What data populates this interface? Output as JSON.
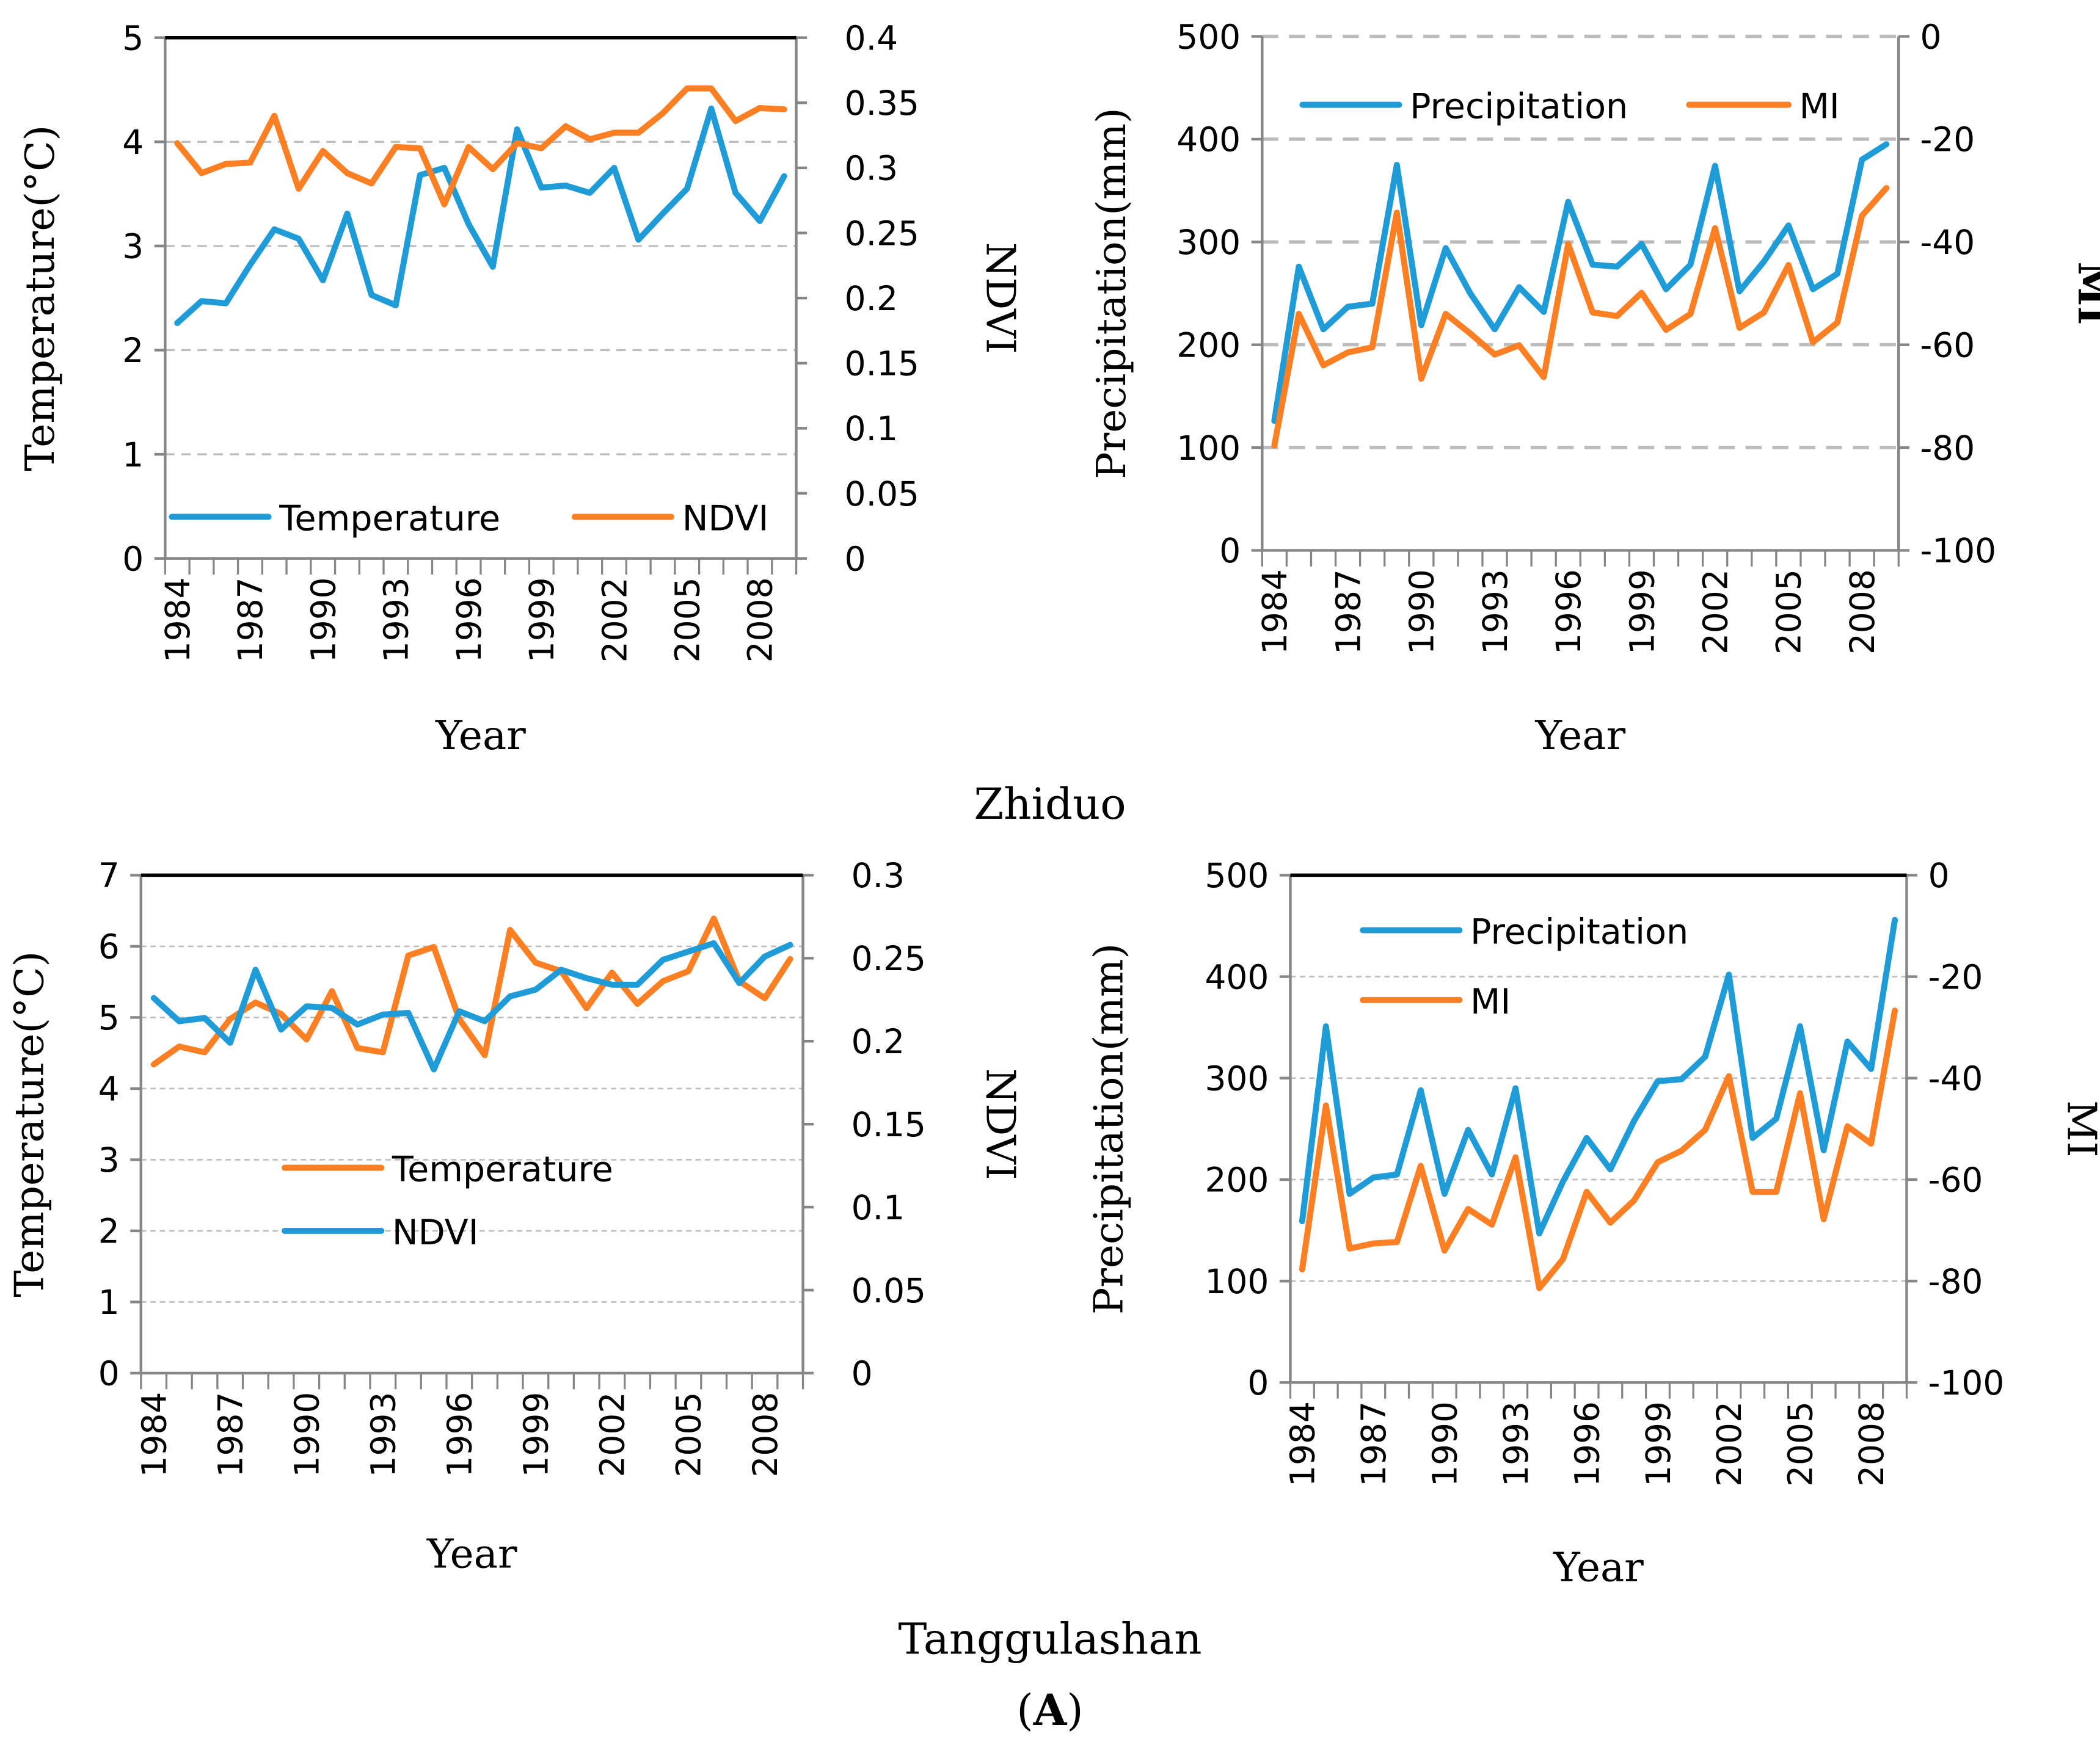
{
  "colors": {
    "blue": "#1f9bd7",
    "orange": "#fd7f23",
    "axis": "#868686",
    "grid": "#bdbdbd"
  },
  "captions": {
    "station1": "Zhiduo",
    "station2": "Tanggulashan",
    "panel_open": "(",
    "panel_letter": "A",
    "panel_close": ")"
  },
  "chart_data": [
    {
      "type": "line",
      "station": "Zhiduo",
      "xlabel": "Year",
      "x": [
        1984,
        1985,
        1986,
        1987,
        1988,
        1989,
        1990,
        1991,
        1992,
        1993,
        1994,
        1995,
        1996,
        1997,
        1998,
        1999,
        2000,
        2001,
        2002,
        2003,
        2004,
        2005,
        2006,
        2007,
        2008,
        2009
      ],
      "x_tick_labels": [
        "1984",
        "1987",
        "1990",
        "1993",
        "1996",
        "1999",
        "2002",
        "2005",
        "2008"
      ],
      "y_left": {
        "label": "Temperature(°C)",
        "range": [
          0,
          5
        ],
        "ticks": [
          0,
          1,
          2,
          3,
          4,
          5
        ]
      },
      "y_right": {
        "label": "NDVI",
        "range": [
          0,
          0.4
        ],
        "ticks": [
          0,
          0.05,
          0.1,
          0.15,
          0.2,
          0.25,
          0.3,
          0.35,
          0.4
        ]
      },
      "grid": true,
      "legend_position": "bottom",
      "series": [
        {
          "name": "Temperature",
          "axis": "left",
          "color": "#1f9bd7",
          "values": [
            2.26,
            2.47,
            2.45,
            2.82,
            3.16,
            3.07,
            2.67,
            3.31,
            2.53,
            2.43,
            3.68,
            3.75,
            3.21,
            2.8,
            4.12,
            3.56,
            3.58,
            3.51,
            3.75,
            3.06,
            3.31,
            3.55,
            4.32,
            3.51,
            3.24,
            3.67
          ]
        },
        {
          "name": "NDVI",
          "axis": "right",
          "color": "#fd7f23",
          "values": [
            0.319,
            0.296,
            0.303,
            0.304,
            0.34,
            0.284,
            0.313,
            0.296,
            0.288,
            0.316,
            0.315,
            0.272,
            0.316,
            0.299,
            0.319,
            0.315,
            0.332,
            0.322,
            0.327,
            0.327,
            0.342,
            0.361,
            0.361,
            0.336,
            0.346,
            0.345
          ]
        }
      ]
    },
    {
      "type": "line",
      "station": "Zhiduo",
      "xlabel": "Year",
      "x": [
        1984,
        1985,
        1986,
        1987,
        1988,
        1989,
        1990,
        1991,
        1992,
        1993,
        1994,
        1995,
        1996,
        1997,
        1998,
        1999,
        2000,
        2001,
        2002,
        2003,
        2004,
        2005,
        2006,
        2007,
        2008,
        2009
      ],
      "x_tick_labels": [
        "1984",
        "1987",
        "1990",
        "1993",
        "1996",
        "1999",
        "2002",
        "2005",
        "2008"
      ],
      "y_left": {
        "label": "Precipitation(mm)",
        "range": [
          0,
          500
        ],
        "ticks": [
          0,
          100,
          200,
          300,
          400,
          500
        ]
      },
      "y_right": {
        "label": "MI",
        "range": [
          -100,
          0
        ],
        "ticks": [
          -100,
          -80,
          -60,
          -40,
          -20,
          0
        ]
      },
      "grid": true,
      "legend_position": "top",
      "series": [
        {
          "name": "Precipitation",
          "axis": "left",
          "color": "#1f9bd7",
          "values": [
            126,
            276,
            215,
            237,
            240,
            375,
            219,
            294,
            250,
            215,
            256,
            232,
            339,
            278,
            276,
            298,
            254,
            278,
            374,
            252,
            281,
            316,
            254,
            269,
            380,
            395
          ]
        },
        {
          "name": "MI",
          "axis": "right",
          "color": "#fd7f23",
          "values": [
            -79.6,
            -54.0,
            -64.0,
            -61.5,
            -60.5,
            -34.3,
            -66.6,
            -54.0,
            -57.8,
            -61.9,
            -60.1,
            -66.3,
            -40.4,
            -53.7,
            -54.4,
            -49.9,
            -57.1,
            -54.0,
            -37.3,
            -56.7,
            -53.7,
            -44.5,
            -59.5,
            -55.7,
            -34.9,
            -29.5
          ]
        }
      ]
    },
    {
      "type": "line",
      "station": "Tanggulashan",
      "xlabel": "Year",
      "x": [
        1984,
        1985,
        1986,
        1987,
        1988,
        1989,
        1990,
        1991,
        1992,
        1993,
        1994,
        1995,
        1996,
        1997,
        1998,
        1999,
        2000,
        2001,
        2002,
        2003,
        2004,
        2005,
        2006,
        2007,
        2008,
        2009
      ],
      "x_tick_labels": [
        "1984",
        "1987",
        "1990",
        "1993",
        "1996",
        "1999",
        "2002",
        "2005",
        "2008"
      ],
      "y_left": {
        "label": "Temperature(°C)",
        "range": [
          0,
          7
        ],
        "ticks": [
          0,
          1,
          2,
          3,
          4,
          5,
          6,
          7
        ]
      },
      "y_right": {
        "label": "NDVI",
        "range": [
          0,
          0.3
        ],
        "ticks": [
          0,
          0.05,
          0.1,
          0.15,
          0.2,
          0.25,
          0.3
        ]
      },
      "grid": true,
      "legend_position": "middle-left",
      "series": [
        {
          "name": "Temperature",
          "axis": "left",
          "color": "#fd7f23",
          "values": [
            4.34,
            4.59,
            4.51,
            4.98,
            5.21,
            5.05,
            4.69,
            5.37,
            4.57,
            4.51,
            5.87,
            5.99,
            4.98,
            4.47,
            6.23,
            5.77,
            5.65,
            5.13,
            5.63,
            5.19,
            5.51,
            5.65,
            6.39,
            5.51,
            5.27,
            5.82
          ]
        },
        {
          "name": "NDVI",
          "axis": "right",
          "color": "#1f9bd7",
          "values": [
            0.226,
            0.212,
            0.214,
            0.199,
            0.243,
            0.207,
            0.221,
            0.22,
            0.21,
            0.216,
            0.217,
            0.183,
            0.218,
            0.212,
            0.227,
            0.231,
            0.243,
            0.238,
            0.234,
            0.234,
            0.249,
            0.254,
            0.259,
            0.235,
            0.251,
            0.258
          ]
        }
      ]
    },
    {
      "type": "line",
      "station": "Tanggulashan",
      "xlabel": "Year",
      "x": [
        1984,
        1985,
        1986,
        1987,
        1988,
        1989,
        1990,
        1991,
        1992,
        1993,
        1994,
        1995,
        1996,
        1997,
        1998,
        1999,
        2000,
        2001,
        2002,
        2003,
        2004,
        2005,
        2006,
        2007,
        2008,
        2009
      ],
      "x_tick_labels": [
        "1984",
        "1987",
        "1990",
        "1993",
        "1996",
        "1999",
        "2002",
        "2005",
        "2008"
      ],
      "y_left": {
        "label": "Precipitation(mm)",
        "range": [
          0,
          500
        ],
        "ticks": [
          0,
          100,
          200,
          300,
          400,
          500
        ]
      },
      "y_right": {
        "label": "MI",
        "range": [
          -100,
          0
        ],
        "ticks": [
          -100,
          -80,
          -60,
          -40,
          -20,
          0
        ]
      },
      "grid": true,
      "legend_position": "top-left",
      "series": [
        {
          "name": "Precipitation",
          "axis": "left",
          "color": "#1f9bd7",
          "values": [
            159,
            351,
            186,
            202,
            205,
            288,
            186,
            249,
            205,
            290,
            147,
            198,
            241,
            210,
            258,
            297,
            299,
            321,
            402,
            241,
            260,
            351,
            229,
            336,
            309,
            456
          ]
        },
        {
          "name": "MI",
          "axis": "right",
          "color": "#fd7f23",
          "values": [
            -77.7,
            -45.4,
            -73.6,
            -72.6,
            -72.3,
            -57.3,
            -74.0,
            -65.8,
            -68.9,
            -55.6,
            -81.4,
            -75.7,
            -62.4,
            -68.5,
            -64.1,
            -56.6,
            -54.3,
            -50.2,
            -39.6,
            -62.4,
            -62.4,
            -43.0,
            -67.8,
            -49.5,
            -52.9,
            -26.7
          ]
        }
      ]
    }
  ]
}
